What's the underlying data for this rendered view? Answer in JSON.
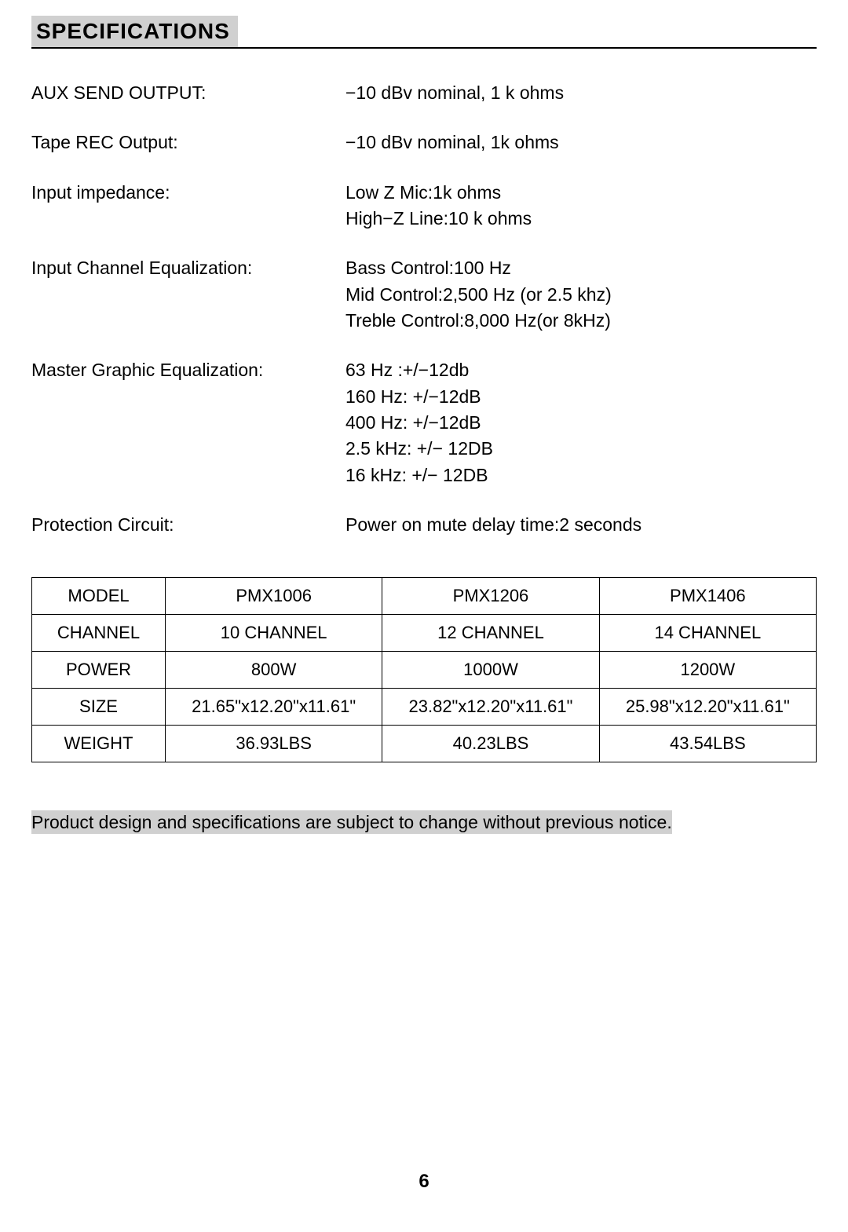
{
  "section_title": "SPECIFICATIONS",
  "specs": [
    {
      "label": "AUX SEND OUTPUT:",
      "lines": [
        "−10 dBv nominal, 1 k ohms"
      ]
    },
    {
      "label": "Tape REC Output:",
      "lines": [
        "−10 dBv nominal, 1k ohms"
      ]
    },
    {
      "label": "Input impedance:",
      "lines": [
        "Low Z Mic:1k ohms",
        "High−Z Line:10 k ohms"
      ]
    },
    {
      "label": "Input Channel Equalization:",
      "lines": [
        "Bass Control:100 Hz",
        "Mid Control:2,500 Hz (or 2.5 khz)",
        "Treble Control:8,000 Hz(or 8kHz)"
      ]
    },
    {
      "label": "Master Graphic Equalization:",
      "lines": [
        "63 Hz :+/−12db",
        "160 Hz: +/−12dB",
        "400 Hz: +/−12dB",
        "2.5 kHz: +/− 12DB",
        "16 kHz: +/− 12DB"
      ]
    },
    {
      "label": "Protection Circuit:",
      "lines": [
        "Power on mute delay time:2 seconds"
      ]
    }
  ],
  "table": {
    "row_headers": [
      "MODEL",
      "CHANNEL",
      "POWER",
      "SIZE",
      "WEIGHT"
    ],
    "columns": [
      "PMX1006",
      "PMX1206",
      "PMX1406"
    ],
    "rows": [
      [
        "PMX1006",
        "PMX1206",
        "PMX1406"
      ],
      [
        "10 CHANNEL",
        "12 CHANNEL",
        "14 CHANNEL"
      ],
      [
        "800W",
        "1000W",
        "1200W"
      ],
      [
        "21.65\"x12.20\"x11.61\"",
        "23.82\"x12.20\"x11.61\"",
        "25.98\"x12.20\"x11.61\""
      ],
      [
        "36.93LBS",
        "40.23LBS",
        "43.54LBS"
      ]
    ]
  },
  "notice": "Product design and specifications are subject to change without previous notice.",
  "page_number": "6",
  "colors": {
    "text": "#000000",
    "background": "#ffffff",
    "highlight_bg": "#d0d0d0",
    "border": "#000000"
  },
  "typography": {
    "title_fontsize": 28,
    "body_fontsize": 23,
    "table_fontsize": 22,
    "pagenum_fontsize": 24
  }
}
